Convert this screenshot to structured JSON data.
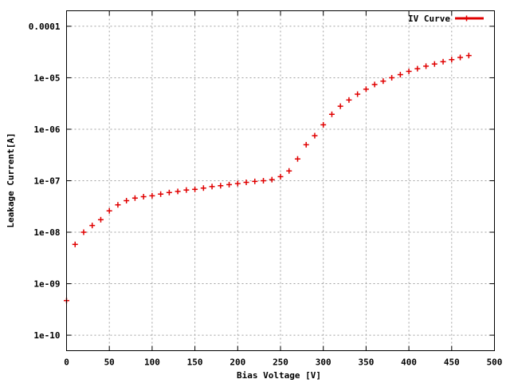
{
  "chart_data": {
    "type": "scatter",
    "xlabel": "Bias Voltage [V]",
    "ylabel": "Leakage Current[A]",
    "xlim": [
      0,
      500
    ],
    "ylim": [
      5e-11,
      0.0002
    ],
    "yscale": "log",
    "grid": true,
    "legend_position": "top-right",
    "xticks": [
      0,
      50,
      100,
      150,
      200,
      250,
      300,
      350,
      400,
      450,
      500
    ],
    "xtick_labels": [
      "0",
      "50",
      "100",
      "150",
      "200",
      "250",
      "300",
      "350",
      "400",
      "450",
      "500"
    ],
    "yticks": [
      1e-10,
      1e-09,
      1e-08,
      1e-07,
      1e-06,
      1e-05,
      0.0001
    ],
    "ytick_labels": [
      "1e-10",
      "1e-09",
      "1e-08",
      "1e-07",
      "1e-06",
      "1e-05",
      "0.0001"
    ],
    "series": [
      {
        "name": "IV Curve",
        "color": "#e00000",
        "marker": "plus",
        "x": [
          0,
          10,
          20,
          30,
          40,
          50,
          60,
          70,
          80,
          90,
          100,
          110,
          120,
          130,
          140,
          150,
          160,
          170,
          180,
          190,
          200,
          210,
          220,
          230,
          240,
          250,
          260,
          270,
          280,
          290,
          300,
          310,
          320,
          330,
          340,
          350,
          360,
          370,
          380,
          390,
          400,
          410,
          420,
          430,
          440,
          450,
          460,
          470
        ],
        "y": [
          4.7e-10,
          5.8e-09,
          1e-08,
          1.35e-08,
          1.75e-08,
          2.6e-08,
          3.4e-08,
          4.1e-08,
          4.6e-08,
          4.9e-08,
          5.1e-08,
          5.5e-08,
          5.9e-08,
          6.2e-08,
          6.6e-08,
          6.8e-08,
          7.2e-08,
          7.7e-08,
          8e-08,
          8.4e-08,
          8.8e-08,
          9.3e-08,
          9.7e-08,
          1e-07,
          1.05e-07,
          1.2e-07,
          1.55e-07,
          2.65e-07,
          5e-07,
          7.5e-07,
          1.22e-06,
          1.95e-06,
          2.8e-06,
          3.7e-06,
          4.8e-06,
          6e-06,
          7.4e-06,
          8.6e-06,
          1e-05,
          1.15e-05,
          1.33e-05,
          1.5e-05,
          1.68e-05,
          1.85e-05,
          2.05e-05,
          2.25e-05,
          2.48e-05,
          2.7e-05
        ]
      }
    ]
  }
}
